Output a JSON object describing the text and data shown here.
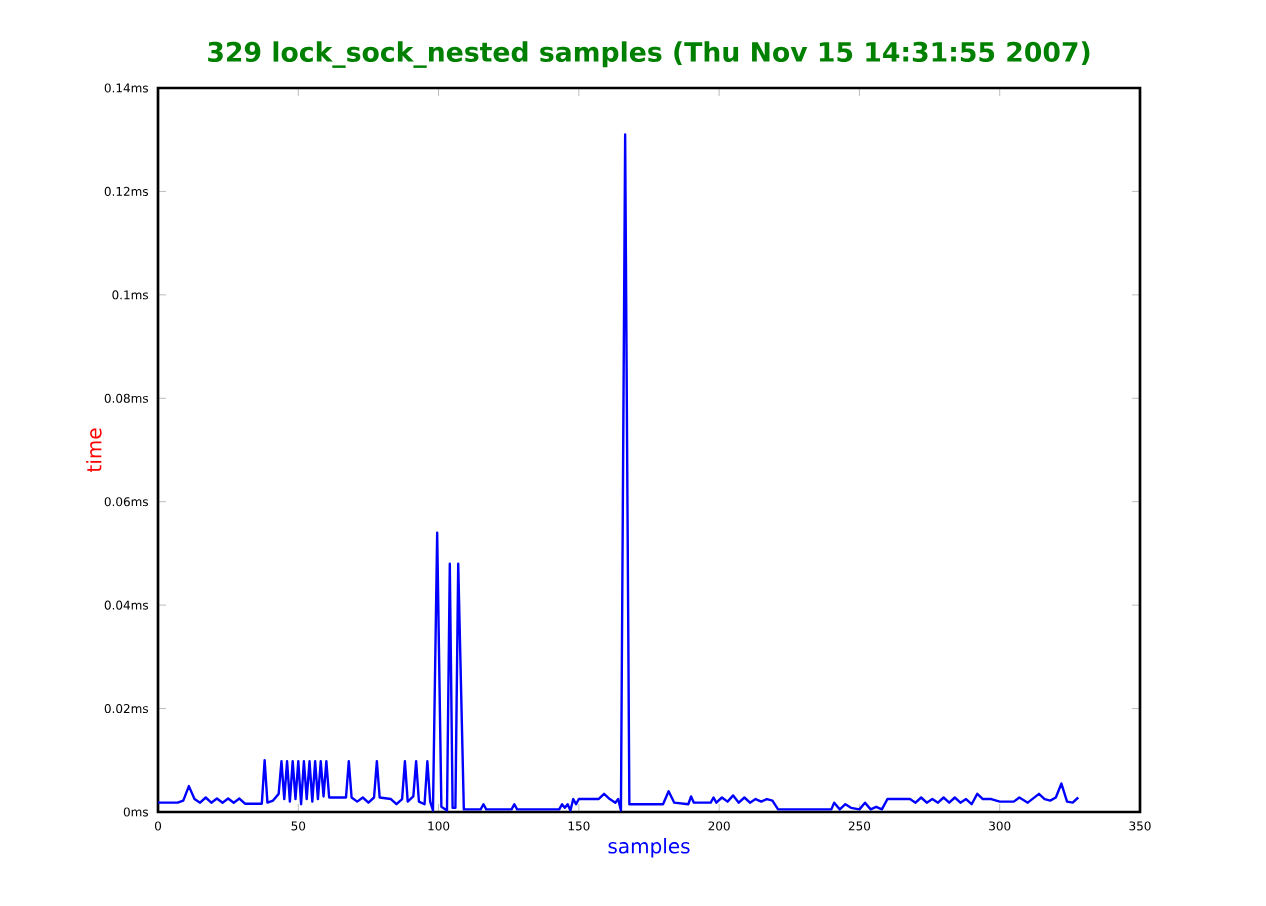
{
  "chart_data": {
    "type": "line",
    "title": "329 lock_sock_nested samples (Thu Nov 15 14:31:55 2007)",
    "xlabel": "samples",
    "ylabel": "time",
    "xlim": [
      0,
      350
    ],
    "xticks": [
      0,
      50,
      100,
      150,
      200,
      250,
      300,
      350
    ],
    "ylim": [
      0,
      0.14
    ],
    "yticks": [
      {
        "value": 0,
        "label": "0ms"
      },
      {
        "value": 0.02,
        "label": "0.02ms"
      },
      {
        "value": 0.04,
        "label": "0.04ms"
      },
      {
        "value": 0.06,
        "label": "0.06ms"
      },
      {
        "value": 0.08,
        "label": "0.08ms"
      },
      {
        "value": 0.1,
        "label": "0.1ms"
      },
      {
        "value": 0.12,
        "label": "0.12ms"
      },
      {
        "value": 0.14,
        "label": "0.14ms"
      }
    ],
    "grid": false,
    "marker": "none",
    "line_style": "solid",
    "series": [
      {
        "color": "#0000ff",
        "x": [
          0,
          7,
          9,
          11,
          13,
          15,
          17,
          19,
          21,
          23,
          25,
          27,
          29,
          31,
          37,
          38,
          39,
          41,
          43,
          44,
          45,
          46,
          47,
          48,
          49,
          50,
          51,
          52,
          53,
          54,
          55,
          56,
          57,
          58,
          59,
          60,
          61,
          67,
          68,
          69,
          71,
          73,
          75,
          77,
          78,
          79,
          83,
          85,
          87,
          88,
          89,
          91,
          92,
          93,
          95,
          96,
          97,
          98,
          99.5,
          101,
          103,
          104,
          105,
          106,
          107,
          109,
          115,
          116,
          117,
          126,
          127,
          128,
          143,
          144,
          145,
          146,
          147,
          148,
          149,
          150,
          157,
          159,
          161,
          163,
          164,
          165,
          166.5,
          168,
          180,
          182,
          184,
          189,
          190,
          191,
          197,
          198,
          199,
          201,
          203,
          205,
          207,
          209,
          211,
          213,
          215,
          217,
          219,
          221,
          240,
          241,
          243,
          245,
          247,
          250,
          252,
          254,
          256,
          258,
          260,
          268,
          270,
          272,
          274,
          276,
          278,
          280,
          282,
          284,
          286,
          288,
          290,
          292,
          294,
          297,
          300,
          305,
          307,
          310,
          314,
          316,
          318,
          320,
          322,
          324,
          326,
          328
        ],
        "values": [
          0.0018,
          0.0018,
          0.0022,
          0.005,
          0.0025,
          0.0018,
          0.0028,
          0.0018,
          0.0026,
          0.0018,
          0.0026,
          0.0018,
          0.0026,
          0.0016,
          0.0016,
          0.01,
          0.0018,
          0.0022,
          0.0035,
          0.0098,
          0.0025,
          0.0098,
          0.002,
          0.0098,
          0.0025,
          0.0098,
          0.0015,
          0.0098,
          0.0025,
          0.0098,
          0.002,
          0.0098,
          0.0025,
          0.0098,
          0.003,
          0.0098,
          0.0028,
          0.0028,
          0.0098,
          0.0028,
          0.002,
          0.0028,
          0.0018,
          0.0028,
          0.0098,
          0.0028,
          0.0025,
          0.0015,
          0.0025,
          0.0098,
          0.002,
          0.003,
          0.0098,
          0.002,
          0.0015,
          0.0098,
          0.002,
          0.0003,
          0.054,
          0.001,
          0.0003,
          0.048,
          0.0008,
          0.0008,
          0.048,
          0.0005,
          0.0005,
          0.0015,
          0.0005,
          0.0005,
          0.0015,
          0.0005,
          0.0005,
          0.0015,
          0.0008,
          0.0015,
          0.0003,
          0.0025,
          0.0015,
          0.0025,
          0.0025,
          0.0035,
          0.0025,
          0.0018,
          0.0025,
          0.0003,
          0.131,
          0.0015,
          0.0015,
          0.004,
          0.0018,
          0.0015,
          0.003,
          0.0018,
          0.0018,
          0.0028,
          0.0018,
          0.0028,
          0.002,
          0.0032,
          0.0018,
          0.0028,
          0.0018,
          0.0025,
          0.002,
          0.0025,
          0.0022,
          0.0005,
          0.0005,
          0.0018,
          0.0005,
          0.0015,
          0.0008,
          0.0005,
          0.0018,
          0.0005,
          0.001,
          0.0005,
          0.0025,
          0.0025,
          0.0018,
          0.0028,
          0.0018,
          0.0025,
          0.0018,
          0.0028,
          0.0018,
          0.0028,
          0.0018,
          0.0025,
          0.0015,
          0.0035,
          0.0025,
          0.0025,
          0.002,
          0.002,
          0.0028,
          0.0018,
          0.0035,
          0.0025,
          0.0022,
          0.0028,
          0.0055,
          0.002,
          0.0018,
          0.0028
        ]
      }
    ]
  }
}
